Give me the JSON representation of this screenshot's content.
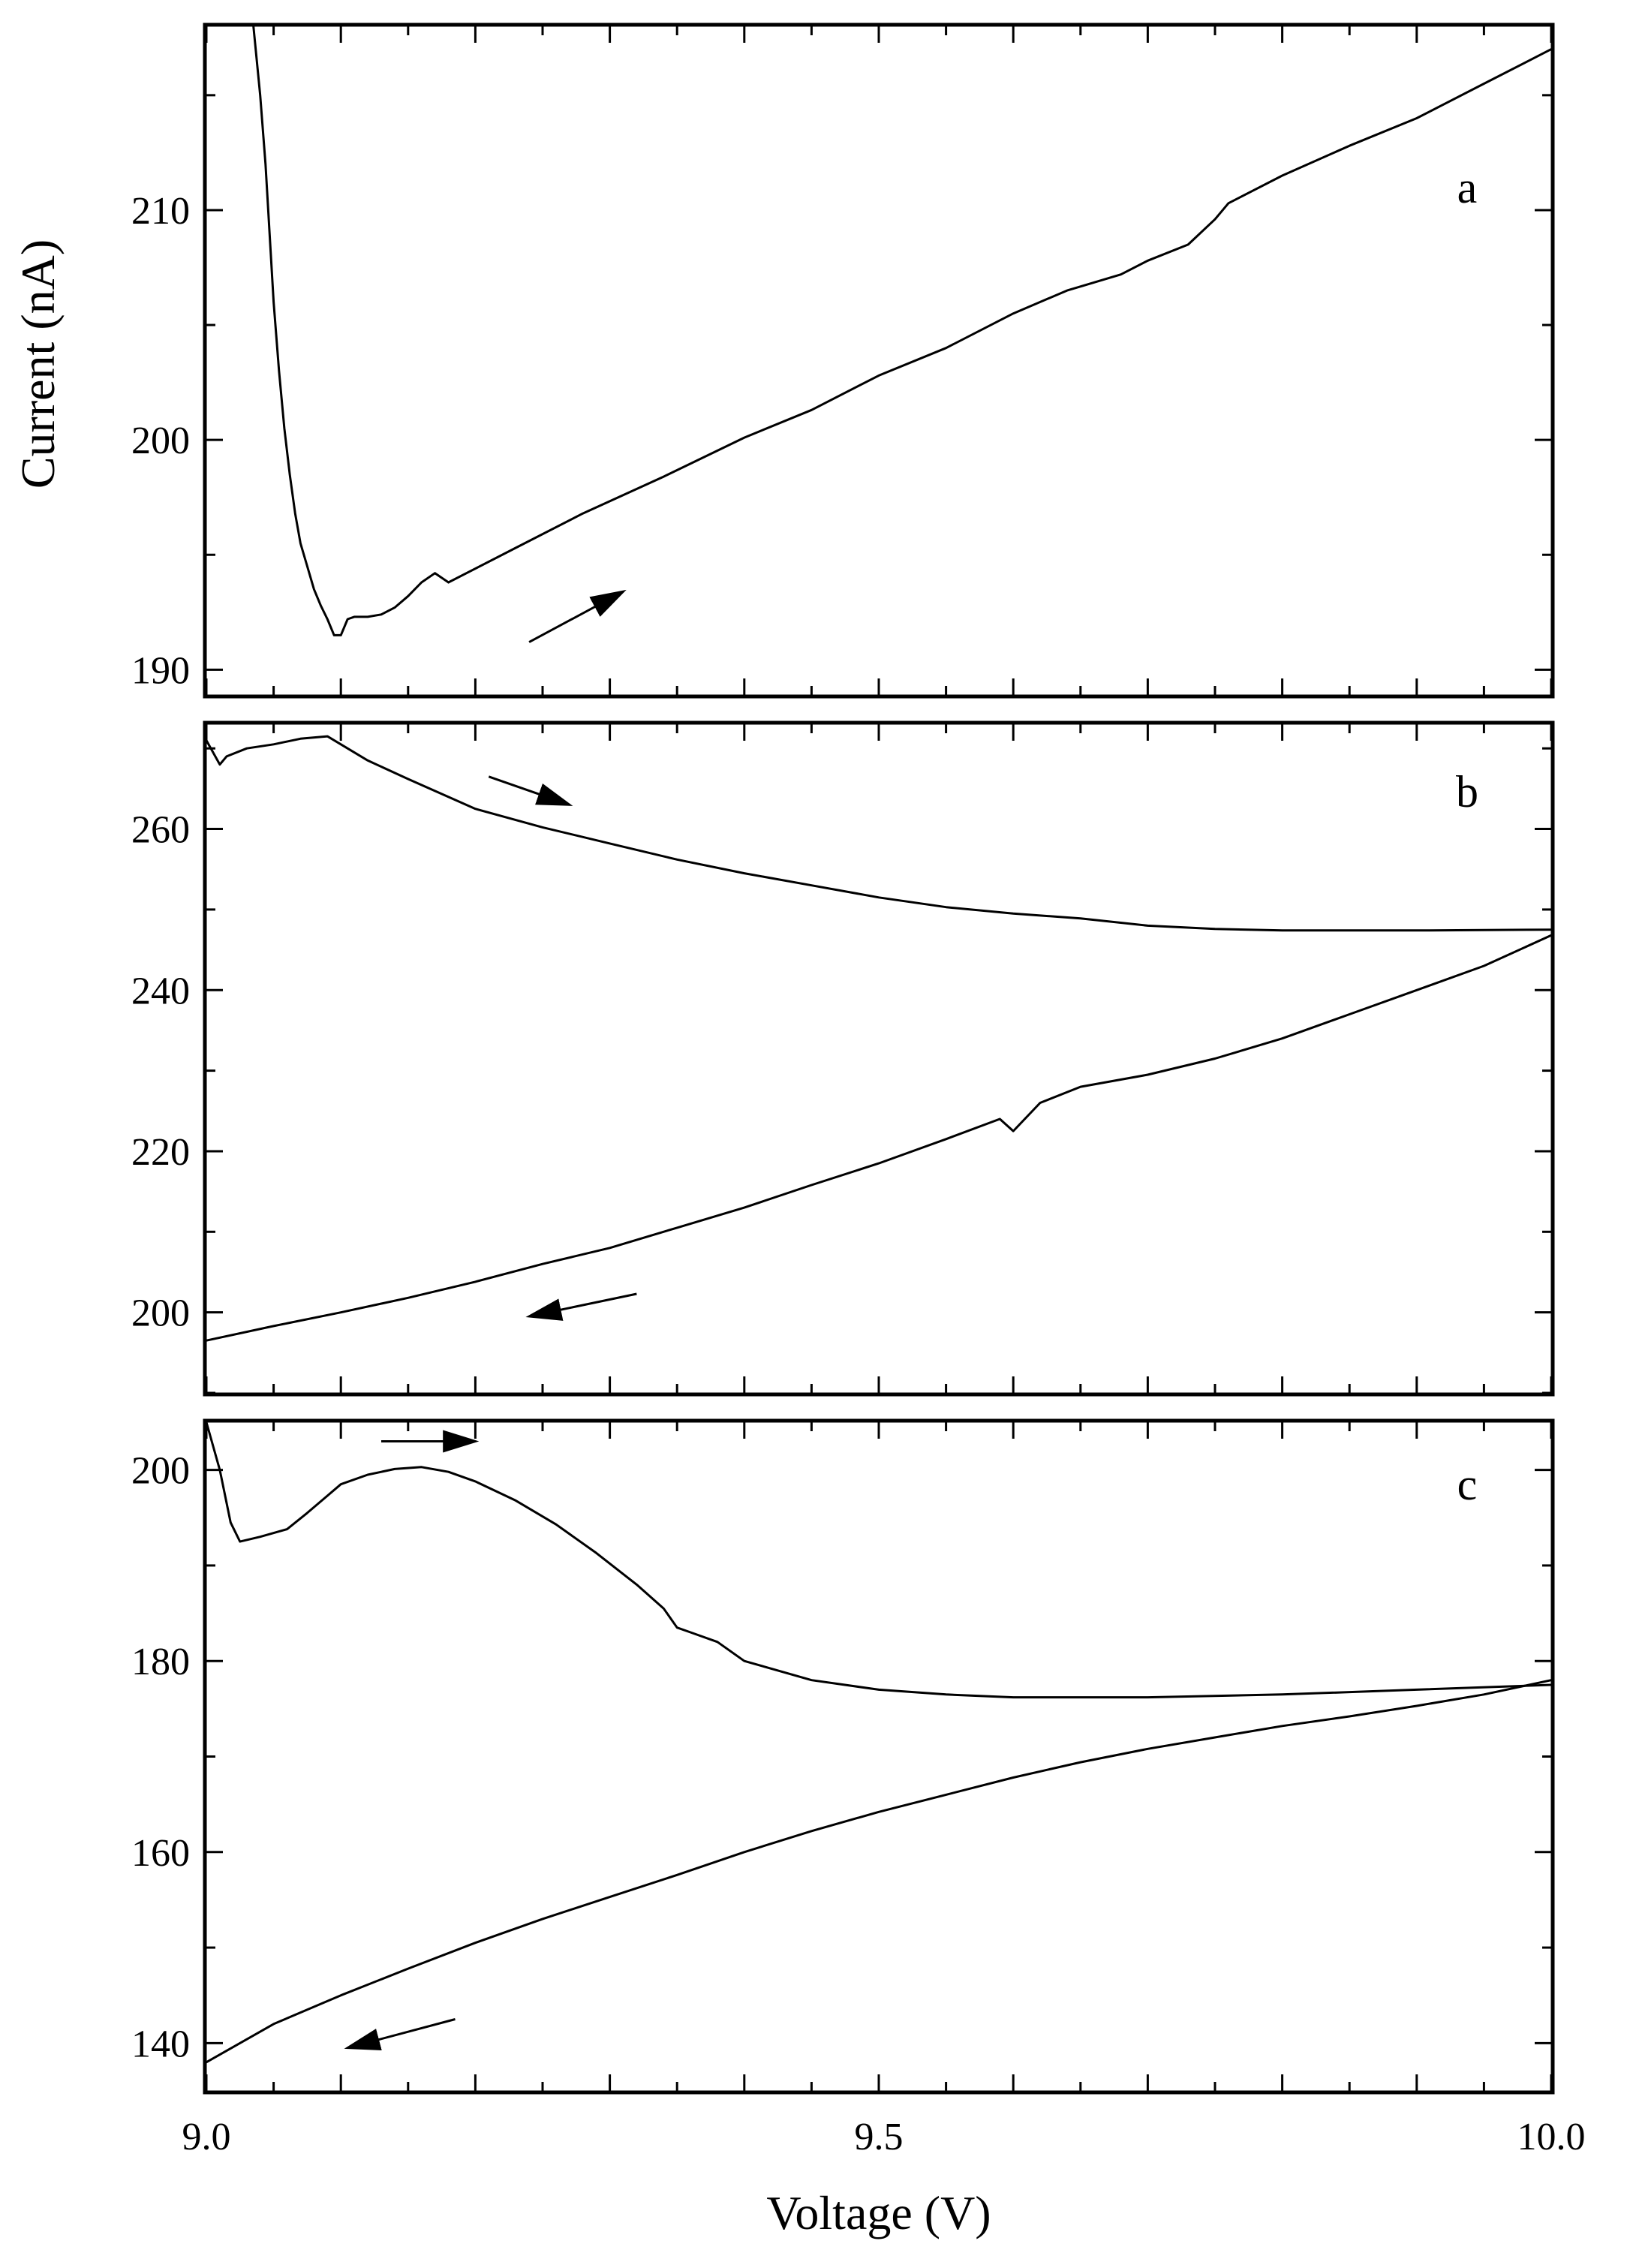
{
  "chart_data": [
    {
      "type": "line",
      "panel_label": "a",
      "xlim": [
        9.0,
        10.0
      ],
      "ylim": [
        188.9,
        218.0
      ],
      "ylabel": "Current (nA)",
      "yticks": [
        190,
        200,
        210
      ],
      "ytick_labels": [
        "190",
        "200",
        "210"
      ],
      "grid": false,
      "series": [
        {
          "direction": "forward",
          "segments": [
            [
              [
                9.035,
                218.0
              ],
              [
                9.04,
                215.0
              ],
              [
                9.044,
                212.0
              ],
              [
                9.047,
                209.0
              ],
              [
                9.05,
                206.0
              ],
              [
                9.054,
                203.0
              ],
              [
                9.058,
                200.5
              ],
              [
                9.062,
                198.5
              ],
              [
                9.066,
                196.8
              ],
              [
                9.07,
                195.5
              ],
              [
                9.075,
                194.5
              ],
              [
                9.08,
                193.5
              ],
              [
                9.085,
                192.8
              ],
              [
                9.09,
                192.2
              ],
              [
                9.095,
                191.5
              ],
              [
                9.1,
                191.5
              ],
              [
                9.105,
                192.2
              ],
              [
                9.11,
                192.3
              ],
              [
                9.12,
                192.3
              ],
              [
                9.13,
                192.4
              ],
              [
                9.14,
                192.7
              ],
              [
                9.15,
                193.2
              ],
              [
                9.16,
                193.8
              ],
              [
                9.17,
                194.2
              ],
              [
                9.18,
                193.8
              ]
            ],
            [
              [
                9.18,
                193.8
              ],
              [
                9.23,
                195.3
              ],
              [
                9.28,
                196.8
              ],
              [
                9.34,
                198.4
              ],
              [
                9.4,
                200.1
              ],
              [
                9.45,
                201.3
              ],
              [
                9.5,
                202.8
              ],
              [
                9.55,
                204.0
              ],
              [
                9.6,
                205.5
              ],
              [
                9.64,
                206.5
              ],
              [
                9.68,
                207.2
              ],
              [
                9.7,
                207.8
              ],
              [
                9.73,
                208.5
              ],
              [
                9.75,
                209.6
              ],
              [
                9.76,
                210.3
              ],
              [
                9.8,
                211.5
              ],
              [
                9.85,
                212.8
              ],
              [
                9.9,
                214.0
              ],
              [
                9.95,
                215.5
              ],
              [
                10.0,
                217.0
              ]
            ]
          ]
        }
      ],
      "annotations": [
        {
          "type": "arrow",
          "from": [
            9.24,
            191.2
          ],
          "to": [
            9.31,
            193.4
          ]
        }
      ]
    },
    {
      "type": "line",
      "panel_label": "b",
      "xlim": [
        9.0,
        10.0
      ],
      "ylim": [
        190.0,
        273.0
      ],
      "yticks": [
        200,
        220,
        240,
        260
      ],
      "ytick_labels": [
        "200",
        "220",
        "240",
        "260"
      ],
      "grid": false,
      "series": [
        {
          "direction": "forward",
          "segments": [
            [
              [
                9.0,
                271.0
              ],
              [
                9.01,
                268.0
              ],
              [
                9.015,
                269.0
              ],
              [
                9.03,
                270.0
              ],
              [
                9.05,
                270.5
              ],
              [
                9.07,
                271.2
              ],
              [
                9.09,
                271.5
              ],
              [
                9.1,
                270.5
              ],
              [
                9.12,
                268.5
              ],
              [
                9.15,
                266.2
              ],
              [
                9.2,
                262.5
              ],
              [
                9.25,
                260.2
              ],
              [
                9.3,
                258.2
              ],
              [
                9.35,
                256.2
              ],
              [
                9.4,
                254.5
              ],
              [
                9.45,
                253.0
              ],
              [
                9.5,
                251.5
              ],
              [
                9.55,
                250.3
              ],
              [
                9.6,
                249.5
              ],
              [
                9.65,
                248.9
              ],
              [
                9.7,
                248.0
              ],
              [
                9.75,
                247.6
              ],
              [
                9.8,
                247.4
              ],
              [
                9.9,
                247.4
              ],
              [
                10.0,
                247.5
              ]
            ]
          ]
        },
        {
          "direction": "reverse",
          "segments": [
            [
              [
                9.0,
                196.5
              ],
              [
                9.05,
                198.3
              ],
              [
                9.1,
                200.0
              ],
              [
                9.15,
                201.8
              ],
              [
                9.2,
                203.8
              ],
              [
                9.25,
                206.0
              ],
              [
                9.3,
                208.0
              ],
              [
                9.35,
                210.5
              ],
              [
                9.4,
                213.0
              ],
              [
                9.45,
                215.8
              ],
              [
                9.5,
                218.5
              ],
              [
                9.55,
                221.5
              ],
              [
                9.59,
                224.0
              ],
              [
                9.6,
                222.5
              ],
              [
                9.62,
                226.0
              ],
              [
                9.65,
                228.0
              ],
              [
                9.7,
                229.5
              ],
              [
                9.75,
                231.5
              ],
              [
                9.8,
                234.0
              ],
              [
                9.85,
                237.0
              ],
              [
                9.9,
                240.0
              ],
              [
                9.95,
                243.0
              ],
              [
                10.0,
                246.8
              ]
            ]
          ]
        }
      ],
      "annotations": [
        {
          "type": "arrow",
          "from": [
            9.21,
            266.5
          ],
          "to": [
            9.27,
            263.0
          ]
        },
        {
          "type": "arrow",
          "from": [
            9.32,
            202.3
          ],
          "to": [
            9.24,
            199.5
          ]
        }
      ]
    },
    {
      "type": "line",
      "panel_label": "c",
      "xlim": [
        9.0,
        10.0
      ],
      "ylim": [
        135.0,
        205.0
      ],
      "xlabel": "Voltage (V)",
      "xticks": [
        9.0,
        9.5,
        10.0
      ],
      "xtick_labels": [
        "9.0",
        "9.5",
        "10.0"
      ],
      "yticks": [
        140,
        160,
        180,
        200
      ],
      "ytick_labels": [
        "140",
        "160",
        "180",
        "200"
      ],
      "grid": false,
      "series": [
        {
          "direction": "forward",
          "segments": [
            [
              [
                9.0,
                205.0
              ],
              [
                9.01,
                200.0
              ],
              [
                9.018,
                194.5
              ],
              [
                9.025,
                192.5
              ],
              [
                9.04,
                193.0
              ],
              [
                9.06,
                193.8
              ],
              [
                9.075,
                195.5
              ],
              [
                9.09,
                197.3
              ],
              [
                9.1,
                198.5
              ],
              [
                9.12,
                199.5
              ],
              [
                9.14,
                200.1
              ],
              [
                9.16,
                200.3
              ],
              [
                9.18,
                199.8
              ],
              [
                9.2,
                198.8
              ],
              [
                9.23,
                196.8
              ],
              [
                9.26,
                194.3
              ],
              [
                9.29,
                191.3
              ],
              [
                9.32,
                188.0
              ],
              [
                9.34,
                185.5
              ],
              [
                9.35,
                183.5
              ],
              [
                9.36,
                183.0
              ],
              [
                9.38,
                182.0
              ],
              [
                9.4,
                180.0
              ],
              [
                9.45,
                178.0
              ],
              [
                9.5,
                177.0
              ],
              [
                9.55,
                176.5
              ],
              [
                9.6,
                176.2
              ],
              [
                9.7,
                176.2
              ],
              [
                9.8,
                176.5
              ],
              [
                9.9,
                177.0
              ],
              [
                10.0,
                177.5
              ]
            ]
          ]
        },
        {
          "direction": "reverse",
          "segments": [
            [
              [
                9.0,
                138.0
              ],
              [
                9.05,
                142.0
              ],
              [
                9.1,
                145.0
              ],
              [
                9.15,
                147.8
              ],
              [
                9.2,
                150.5
              ],
              [
                9.25,
                153.0
              ],
              [
                9.3,
                155.3
              ],
              [
                9.35,
                157.6
              ],
              [
                9.4,
                160.0
              ],
              [
                9.45,
                162.2
              ],
              [
                9.5,
                164.2
              ],
              [
                9.55,
                166.0
              ],
              [
                9.6,
                167.8
              ],
              [
                9.65,
                169.4
              ],
              [
                9.7,
                170.8
              ],
              [
                9.75,
                172.0
              ],
              [
                9.8,
                173.2
              ],
              [
                9.85,
                174.2
              ],
              [
                9.9,
                175.3
              ],
              [
                9.95,
                176.5
              ],
              [
                10.0,
                178.0
              ]
            ]
          ]
        }
      ],
      "annotations": [
        {
          "type": "arrow",
          "from": [
            9.13,
            203.0
          ],
          "to": [
            9.2,
            203.0
          ]
        },
        {
          "type": "arrow",
          "from": [
            9.185,
            142.5
          ],
          "to": [
            9.105,
            139.5
          ]
        }
      ]
    }
  ]
}
